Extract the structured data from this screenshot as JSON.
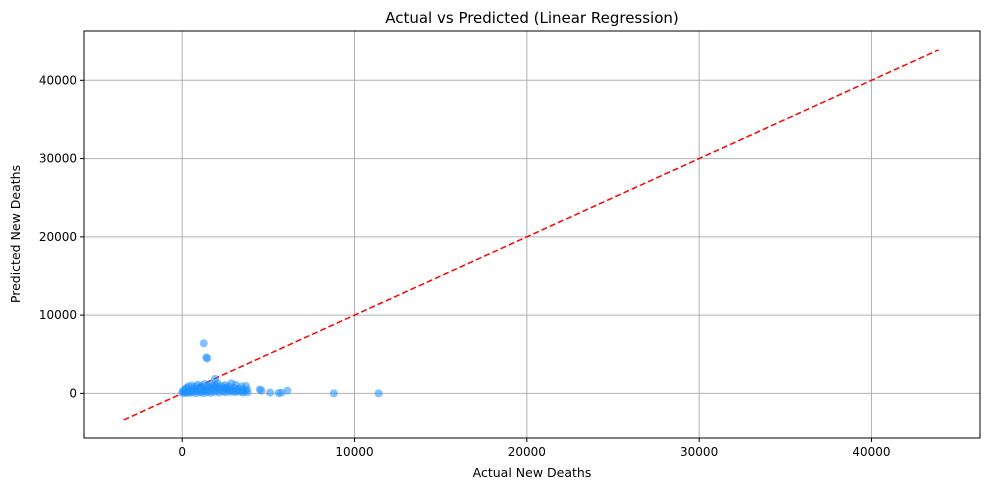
{
  "chart_data": {
    "type": "scatter",
    "title": "Actual vs Predicted (Linear Regression)",
    "xlabel": "Actual New Deaths",
    "ylabel": "Predicted New Deaths",
    "xlim": [
      -5700,
      46300
    ],
    "ylim": [
      -5700,
      46300
    ],
    "xticks": [
      0,
      10000,
      20000,
      30000,
      40000
    ],
    "yticks": [
      0,
      10000,
      20000,
      30000,
      40000
    ],
    "xtick_labels": [
      "0",
      "10000",
      "20000",
      "30000",
      "40000"
    ],
    "ytick_labels": [
      "0",
      "10000",
      "20000",
      "30000",
      "40000"
    ],
    "grid": true,
    "colors": {
      "points": "#1e90ff",
      "reference_line": "#ff0000",
      "grid": "#b0b0b0"
    },
    "reference_line": {
      "style": "dashed",
      "from": [
        -3400,
        -3400
      ],
      "to": [
        43900,
        43900
      ]
    },
    "series": [
      {
        "points": [
          [
            1250,
            6400
          ],
          [
            1400,
            4600
          ],
          [
            1450,
            4450
          ],
          [
            1900,
            1850
          ],
          [
            2050,
            1300
          ],
          [
            2500,
            1050
          ],
          [
            2850,
            1300
          ],
          [
            3100,
            1100
          ],
          [
            3450,
            900
          ],
          [
            3700,
            950
          ],
          [
            4500,
            500
          ],
          [
            4600,
            350
          ],
          [
            5100,
            100
          ],
          [
            5600,
            50
          ],
          [
            5750,
            80
          ],
          [
            6100,
            350
          ],
          [
            8800,
            0
          ],
          [
            11400,
            0
          ],
          [
            0,
            80
          ],
          [
            50,
            300
          ],
          [
            100,
            150
          ],
          [
            150,
            500
          ],
          [
            200,
            30
          ],
          [
            250,
            700
          ],
          [
            300,
            250
          ],
          [
            350,
            900
          ],
          [
            400,
            60
          ],
          [
            450,
            400
          ],
          [
            500,
            200
          ],
          [
            550,
            1000
          ],
          [
            600,
            120
          ],
          [
            650,
            600
          ],
          [
            700,
            350
          ],
          [
            750,
            850
          ],
          [
            800,
            40
          ],
          [
            850,
            450
          ],
          [
            900,
            1100
          ],
          [
            950,
            250
          ],
          [
            1000,
            700
          ],
          [
            1050,
            100
          ],
          [
            1100,
            950
          ],
          [
            1150,
            300
          ],
          [
            1200,
            600
          ],
          [
            1250,
            50
          ],
          [
            1300,
            1200
          ],
          [
            1350,
            400
          ],
          [
            1400,
            800
          ],
          [
            1450,
            150
          ],
          [
            1500,
            1000
          ],
          [
            1550,
            350
          ],
          [
            1600,
            700
          ],
          [
            1650,
            80
          ],
          [
            1700,
            1250
          ],
          [
            1750,
            500
          ],
          [
            1800,
            900
          ],
          [
            1850,
            200
          ],
          [
            1900,
            650
          ],
          [
            1950,
            1050
          ],
          [
            2000,
            300
          ],
          [
            2100,
            800
          ],
          [
            2150,
            100
          ],
          [
            2200,
            550
          ],
          [
            2300,
            950
          ],
          [
            2350,
            250
          ],
          [
            2400,
            650
          ],
          [
            2500,
            150
          ],
          [
            2550,
            700
          ],
          [
            2600,
            400
          ],
          [
            2700,
            850
          ],
          [
            2750,
            200
          ],
          [
            2800,
            500
          ],
          [
            2900,
            300
          ],
          [
            3000,
            700
          ],
          [
            3050,
            150
          ],
          [
            3150,
            450
          ],
          [
            3200,
            250
          ],
          [
            3300,
            600
          ],
          [
            3400,
            200
          ],
          [
            3500,
            450
          ],
          [
            3550,
            100
          ],
          [
            3650,
            300
          ],
          [
            3750,
            500
          ],
          [
            3800,
            150
          ]
        ]
      }
    ]
  }
}
